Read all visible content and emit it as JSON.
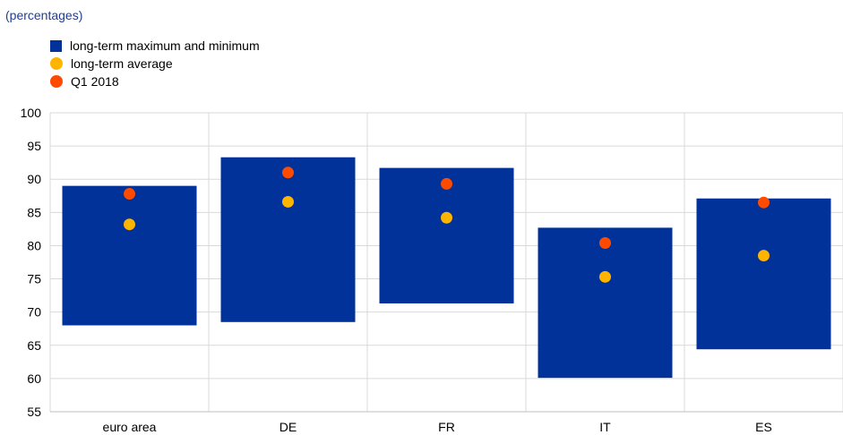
{
  "subtitle": "(percentages)",
  "legend": [
    {
      "label": "long-term maximum and minimum",
      "shape": "square",
      "color": "#003299"
    },
    {
      "label": "long-term average",
      "shape": "dot",
      "color": "#ffb400"
    },
    {
      "label": "Q1 2018",
      "shape": "dot",
      "color": "#ff4b00"
    }
  ],
  "chart_data": {
    "type": "floating-bar-with-markers",
    "categories": [
      "euro area",
      "DE",
      "FR",
      "IT",
      "ES"
    ],
    "ylim": [
      55,
      100
    ],
    "yticks": [
      55,
      60,
      65,
      70,
      75,
      80,
      85,
      90,
      95,
      100
    ],
    "grid": true,
    "legend_position": "top-left",
    "series": [
      {
        "name": "long-term maximum and minimum",
        "type": "range",
        "color": "#003299",
        "min": [
          68.0,
          68.5,
          71.3,
          60.1,
          64.4
        ],
        "max": [
          89.0,
          93.3,
          91.7,
          82.7,
          87.1
        ]
      },
      {
        "name": "long-term average",
        "type": "marker",
        "color": "#ffb400",
        "values": [
          83.2,
          86.6,
          84.2,
          75.3,
          78.5
        ]
      },
      {
        "name": "Q1 2018",
        "type": "marker",
        "color": "#ff4b00",
        "values": [
          87.8,
          91.0,
          89.3,
          80.4,
          86.5
        ]
      }
    ]
  }
}
